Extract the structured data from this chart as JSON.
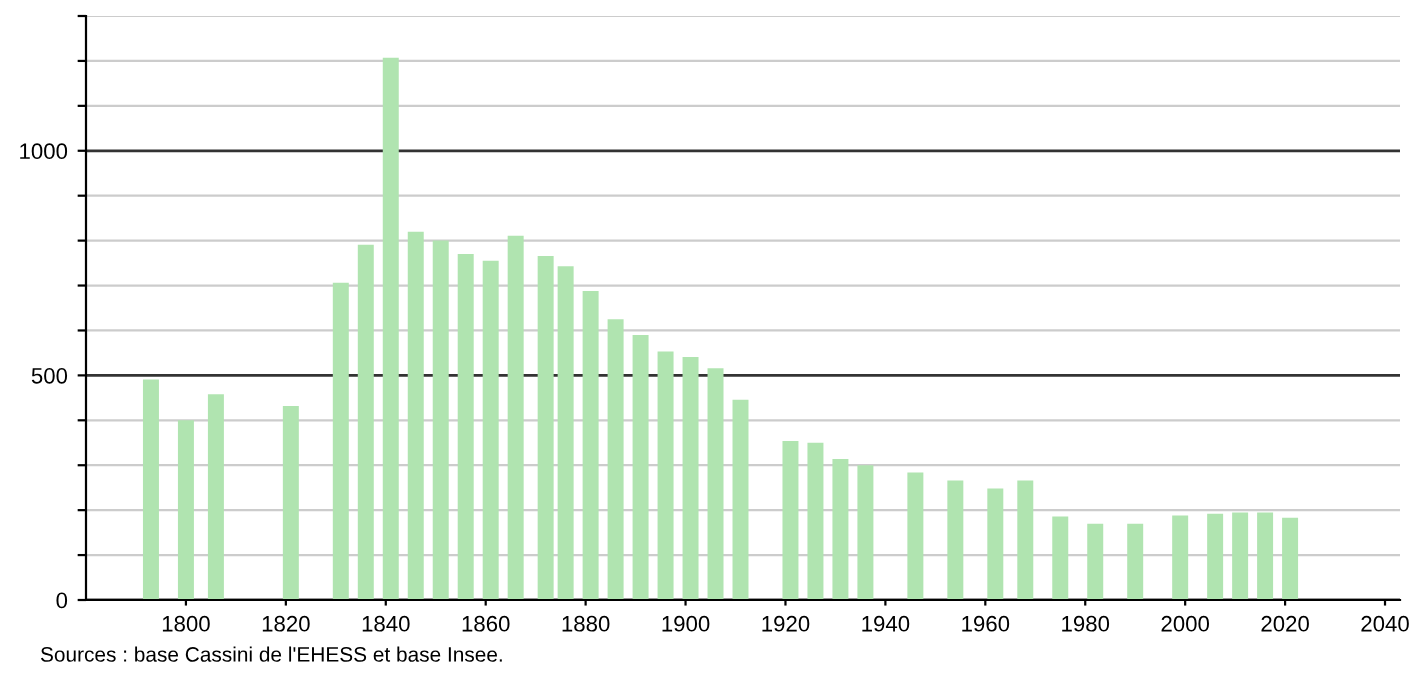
{
  "chart_data": {
    "type": "bar",
    "x": [
      1793,
      1800,
      1806,
      1821,
      1831,
      1836,
      1841,
      1846,
      1851,
      1856,
      1861,
      1866,
      1872,
      1876,
      1881,
      1886,
      1891,
      1896,
      1901,
      1906,
      1911,
      1921,
      1926,
      1931,
      1936,
      1946,
      1954,
      1962,
      1968,
      1975,
      1982,
      1990,
      1999,
      2006,
      2011,
      2016,
      2021
    ],
    "values": [
      491,
      400,
      458,
      432,
      706,
      791,
      1207,
      820,
      800,
      770,
      755,
      811,
      766,
      743,
      688,
      625,
      590,
      553,
      541,
      516,
      446,
      354,
      350,
      314,
      300,
      284,
      266,
      248,
      266,
      186,
      170,
      170,
      188,
      192,
      195,
      195,
      183
    ],
    "color": "#b0e4b0",
    "xlim": [
      1780,
      2043
    ],
    "xticks": [
      1800,
      1820,
      1840,
      1860,
      1880,
      1900,
      1920,
      1940,
      1960,
      1980,
      2000,
      2020,
      2040
    ],
    "ylim": [
      0,
      1300
    ],
    "yticks": [
      0,
      {
        "value": 100,
        "label": null
      },
      {
        "value": 200,
        "label": null
      },
      {
        "value": 300,
        "label": null
      },
      {
        "value": 400,
        "label": null
      },
      500,
      {
        "value": 600,
        "label": null
      },
      {
        "value": 700,
        "label": null
      },
      {
        "value": 800,
        "label": null
      },
      {
        "value": 900,
        "label": null
      },
      1000,
      {
        "value": 1100,
        "label": null
      },
      {
        "value": 1200,
        "label": null
      },
      {
        "value": 1300,
        "label": null
      }
    ],
    "grid": "y",
    "annotations": [
      "Sources : base Cassini de l'EHESS et base Insee."
    ]
  }
}
